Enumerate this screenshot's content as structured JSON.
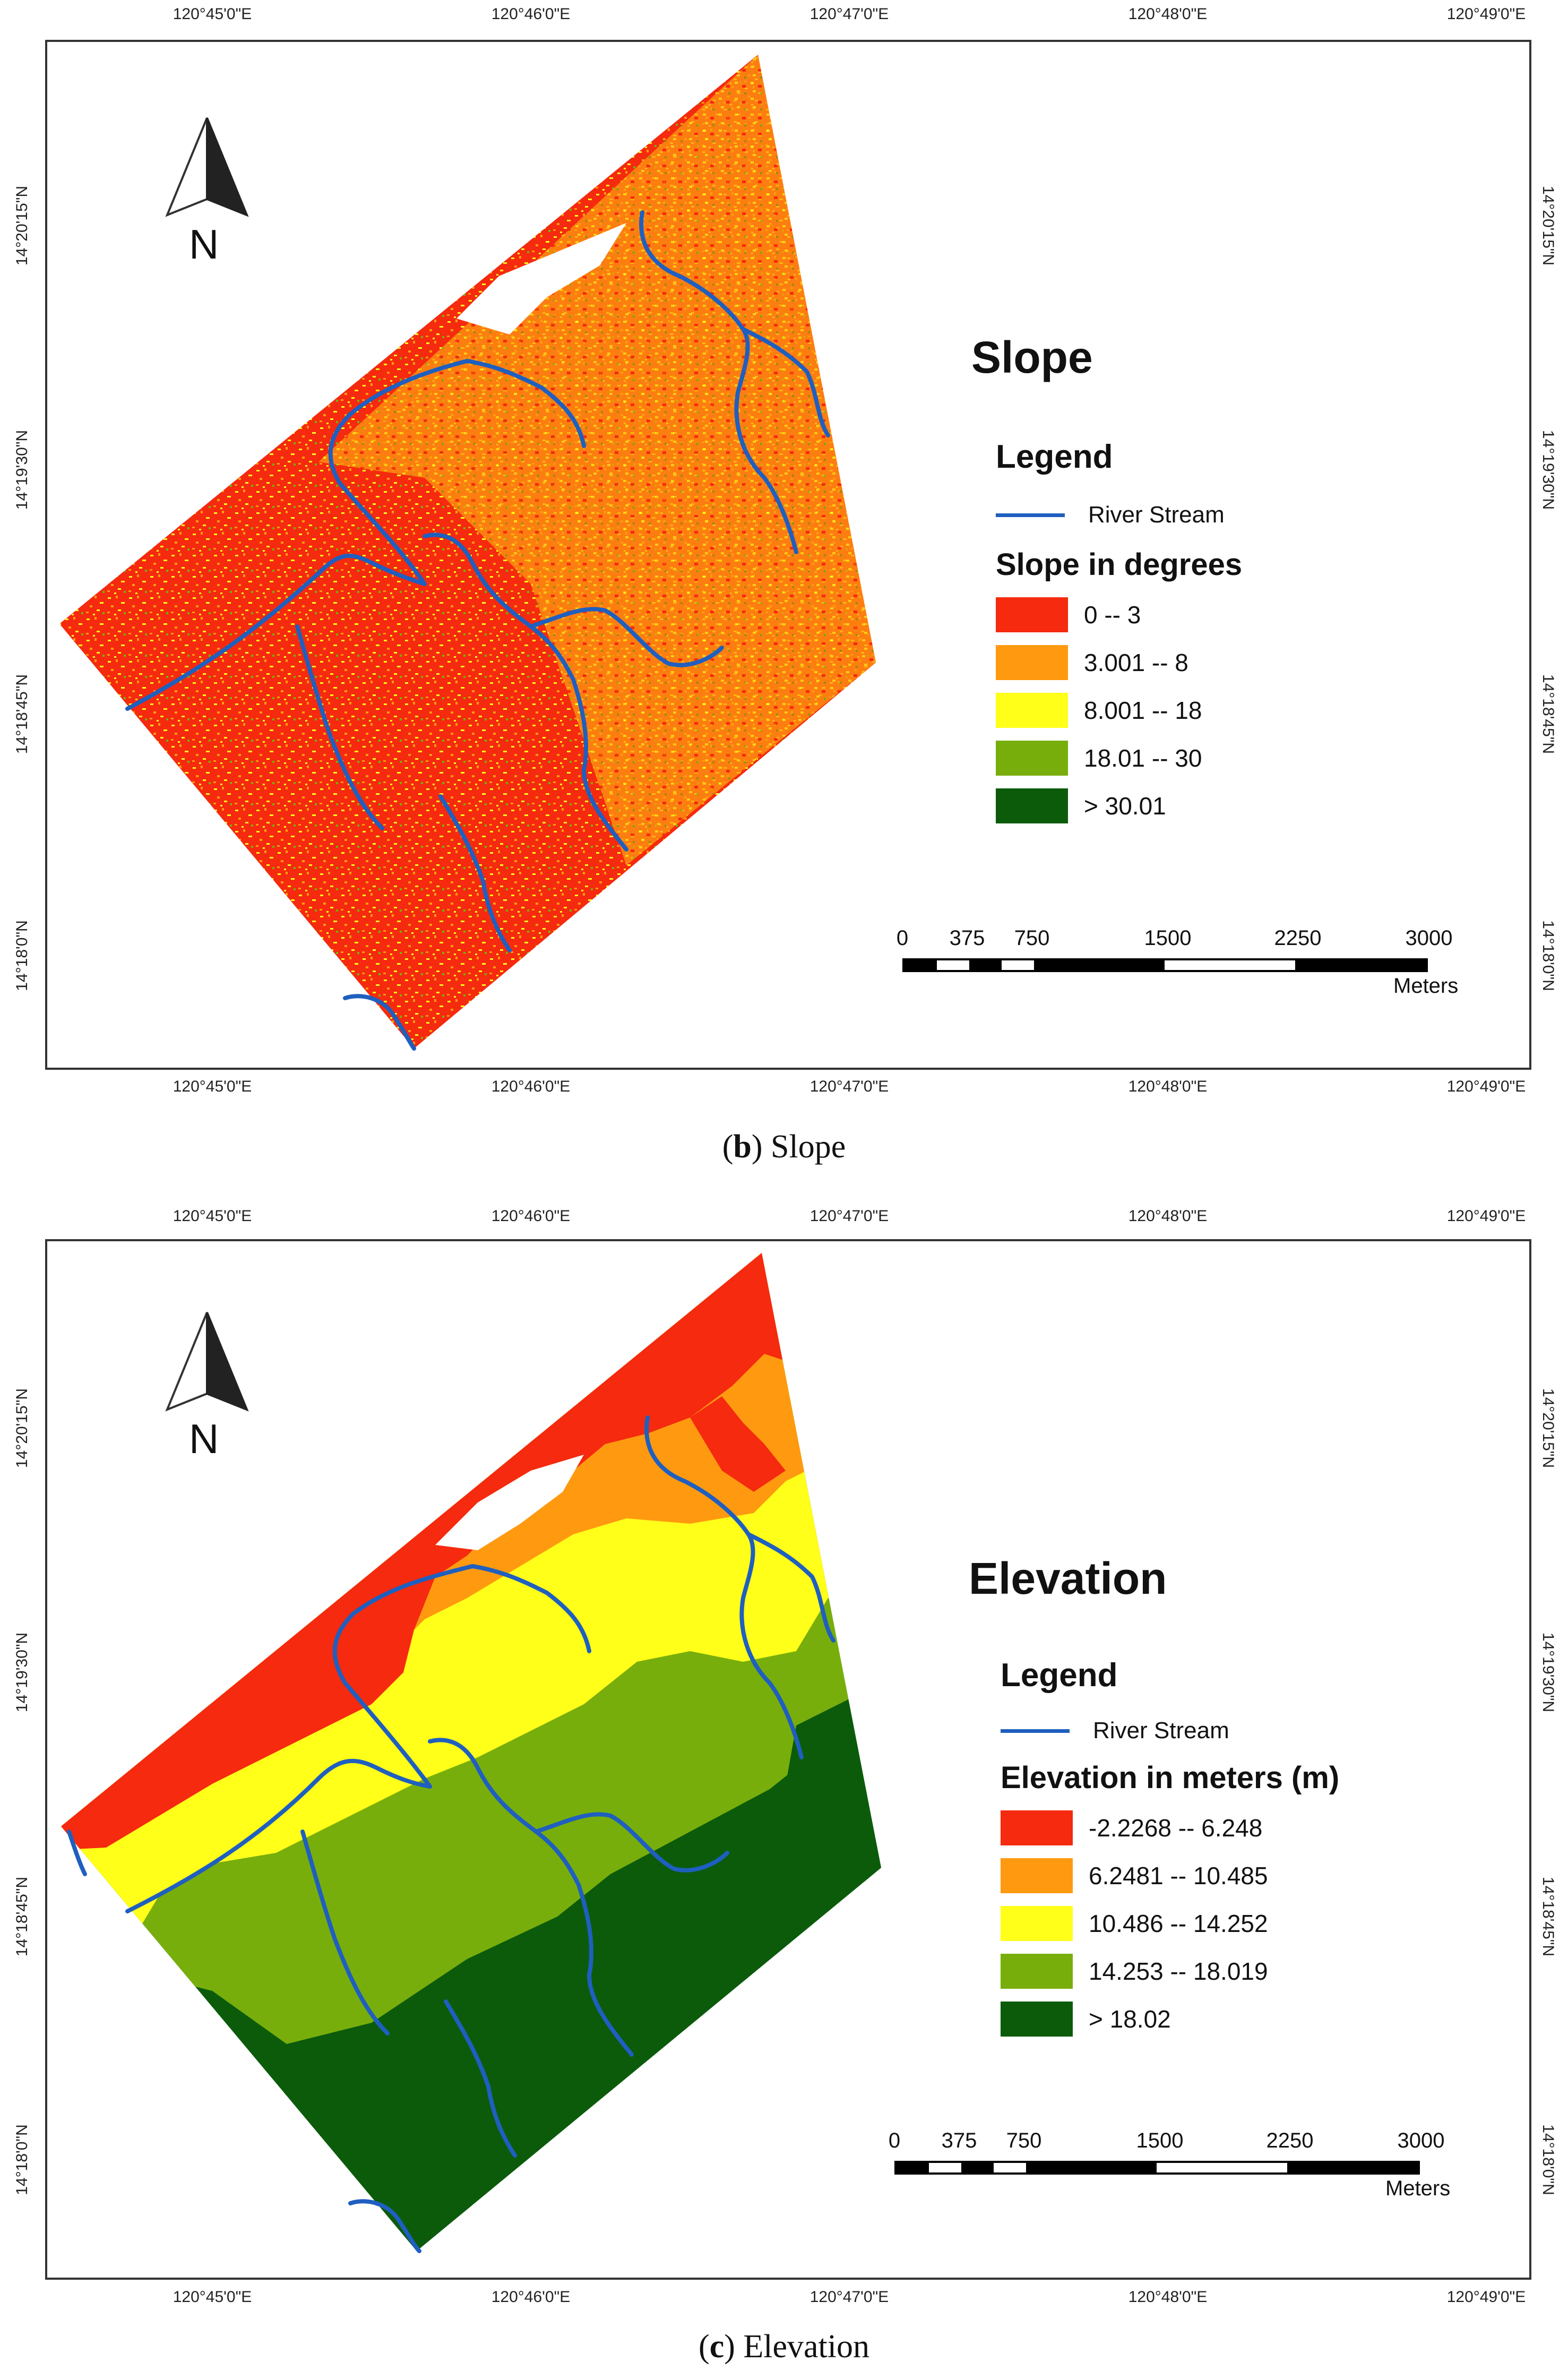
{
  "panels": [
    {
      "id": "b",
      "title": "Slope",
      "legend_heading": "Legend",
      "river_label": "River Stream",
      "class_heading": "Slope in degrees",
      "classes": [
        {
          "label": "0 -- 3",
          "color": "#f52a0e"
        },
        {
          "label": "3.001 -- 8",
          "color": "#ff9a10"
        },
        {
          "label": "8.001 -- 18",
          "color": "#ffff19"
        },
        {
          "label": "18.01 -- 30",
          "color": "#78ae0c"
        },
        {
          "label": "> 30.01",
          "color": "#0b5b0b"
        }
      ],
      "caption_letter": "b",
      "caption_text": " Slope"
    },
    {
      "id": "c",
      "title": "Elevation",
      "legend_heading": "Legend",
      "river_label": "River Stream",
      "class_heading": "Elevation in meters (m)",
      "classes": [
        {
          "label": "-2.2268 -- 6.248",
          "color": "#f52a0e"
        },
        {
          "label": "6.2481 -- 10.485",
          "color": "#ff9a10"
        },
        {
          "label": "10.486 -- 14.252",
          "color": "#ffff19"
        },
        {
          "label": "14.253 -- 18.019",
          "color": "#78ae0c"
        },
        {
          "label": "> 18.02",
          "color": "#0b5b0b"
        }
      ],
      "caption_letter": "c",
      "caption_text": " Elevation"
    }
  ],
  "graticule": {
    "longitudes": [
      "120°45'0\"E",
      "120°46'0\"E",
      "120°47'0\"E",
      "120°48'0\"E",
      "120°49'0\"E"
    ],
    "latitudes": [
      "14°20'15\"N",
      "14°19'30\"N",
      "14°18'45\"N",
      "14°18'0\"N"
    ]
  },
  "scale": {
    "labels": [
      "0",
      "375",
      "750",
      "1500",
      "2250",
      "3000"
    ],
    "unit": "Meters"
  },
  "north_label": "N",
  "river_color": "#1f5fbf"
}
